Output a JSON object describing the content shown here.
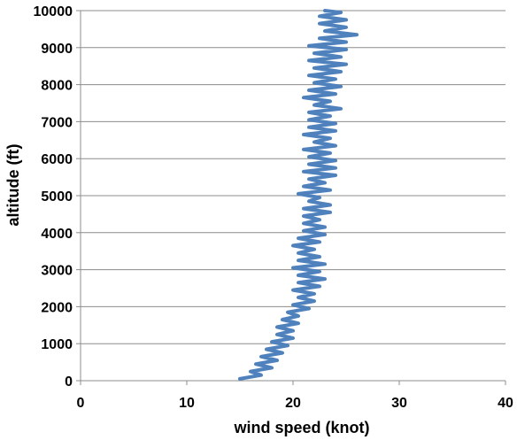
{
  "chart_data": {
    "type": "line",
    "title": "",
    "xlabel": "wind speed (knot)",
    "ylabel": "altitude (ft)",
    "xlim": [
      0,
      40
    ],
    "ylim": [
      0,
      10000
    ],
    "x_ticks": [
      0,
      10,
      20,
      30,
      40
    ],
    "y_ticks": [
      0,
      1000,
      2000,
      3000,
      4000,
      5000,
      6000,
      7000,
      8000,
      9000,
      10000
    ],
    "grid": "horizontal",
    "legend": "none",
    "series_color": "#4f81bd",
    "series": [
      {
        "name": "",
        "points": [
          [
            15.0,
            50
          ],
          [
            17.0,
            150
          ],
          [
            16.0,
            250
          ],
          [
            18.0,
            350
          ],
          [
            16.5,
            450
          ],
          [
            18.5,
            550
          ],
          [
            17.0,
            650
          ],
          [
            19.0,
            750
          ],
          [
            17.5,
            850
          ],
          [
            19.5,
            950
          ],
          [
            18.0,
            1050
          ],
          [
            20.0,
            1150
          ],
          [
            18.5,
            1250
          ],
          [
            20.0,
            1350
          ],
          [
            18.5,
            1450
          ],
          [
            20.5,
            1550
          ],
          [
            19.0,
            1650
          ],
          [
            20.5,
            1750
          ],
          [
            19.5,
            1850
          ],
          [
            21.5,
            1950
          ],
          [
            20.0,
            2050
          ],
          [
            22.0,
            2150
          ],
          [
            20.5,
            2250
          ],
          [
            22.0,
            2350
          ],
          [
            20.0,
            2450
          ],
          [
            22.5,
            2550
          ],
          [
            20.5,
            2650
          ],
          [
            23.0,
            2750
          ],
          [
            20.5,
            2850
          ],
          [
            22.5,
            2950
          ],
          [
            20.0,
            3050
          ],
          [
            23.0,
            3150
          ],
          [
            20.5,
            3250
          ],
          [
            22.5,
            3350
          ],
          [
            20.5,
            3450
          ],
          [
            22.0,
            3550
          ],
          [
            20.0,
            3650
          ],
          [
            22.5,
            3750
          ],
          [
            20.5,
            3850
          ],
          [
            23.0,
            3950
          ],
          [
            21.0,
            4050
          ],
          [
            23.0,
            4150
          ],
          [
            21.0,
            4250
          ],
          [
            22.5,
            4350
          ],
          [
            21.0,
            4450
          ],
          [
            23.5,
            4550
          ],
          [
            21.0,
            4650
          ],
          [
            23.5,
            4750
          ],
          [
            21.5,
            4850
          ],
          [
            22.5,
            4950
          ],
          [
            20.5,
            5050
          ],
          [
            23.5,
            5150
          ],
          [
            21.0,
            5250
          ],
          [
            23.0,
            5350
          ],
          [
            21.5,
            5450
          ],
          [
            24.0,
            5550
          ],
          [
            21.0,
            5650
          ],
          [
            24.0,
            5750
          ],
          [
            21.5,
            5850
          ],
          [
            24.0,
            5950
          ],
          [
            21.5,
            6050
          ],
          [
            23.5,
            6150
          ],
          [
            21.0,
            6250
          ],
          [
            24.0,
            6350
          ],
          [
            22.0,
            6450
          ],
          [
            23.5,
            6550
          ],
          [
            21.0,
            6650
          ],
          [
            24.0,
            6750
          ],
          [
            21.5,
            6850
          ],
          [
            24.0,
            6950
          ],
          [
            21.5,
            7050
          ],
          [
            23.5,
            7150
          ],
          [
            21.5,
            7250
          ],
          [
            24.5,
            7350
          ],
          [
            22.0,
            7450
          ],
          [
            23.5,
            7550
          ],
          [
            21.0,
            7650
          ],
          [
            24.0,
            7750
          ],
          [
            21.5,
            7850
          ],
          [
            24.5,
            7950
          ],
          [
            22.0,
            8050
          ],
          [
            24.0,
            8150
          ],
          [
            21.5,
            8250
          ],
          [
            24.5,
            8350
          ],
          [
            22.0,
            8450
          ],
          [
            25.0,
            8550
          ],
          [
            21.5,
            8650
          ],
          [
            24.5,
            8750
          ],
          [
            22.0,
            8850
          ],
          [
            25.0,
            8950
          ],
          [
            21.5,
            9050
          ],
          [
            25.0,
            9150
          ],
          [
            22.5,
            9250
          ],
          [
            26.0,
            9350
          ],
          [
            23.0,
            9450
          ],
          [
            25.0,
            9550
          ],
          [
            22.5,
            9650
          ],
          [
            25.0,
            9750
          ],
          [
            22.5,
            9850
          ],
          [
            24.5,
            9950
          ],
          [
            23.0,
            10000
          ]
        ]
      }
    ]
  }
}
